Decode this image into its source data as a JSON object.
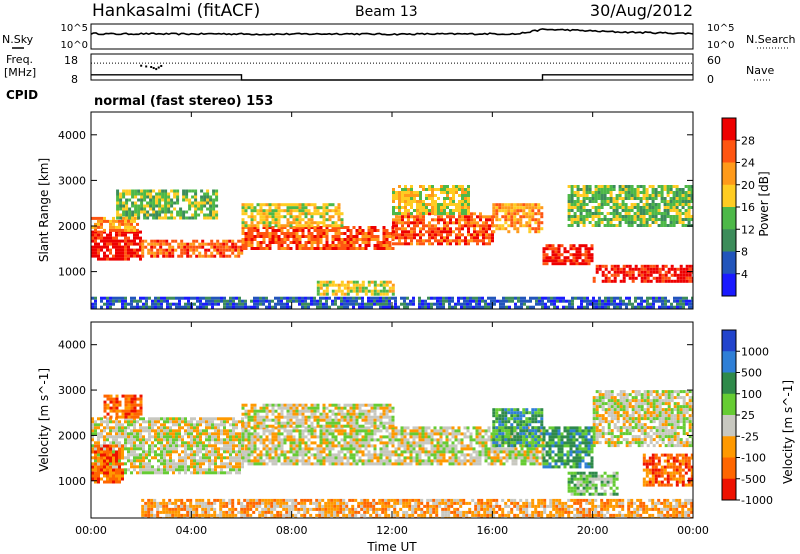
{
  "header": {
    "radar": "Hankasalmi (fitACF)",
    "beam": "Beam 13",
    "date": "30/Aug/2012"
  },
  "noise_panel": {
    "left_label": "N.Sky",
    "right_label": "N.Search",
    "tick_top": "10^5",
    "tick_bottom": "10^0"
  },
  "freq_panel": {
    "left_label": "Freq.",
    "left_unit": "[MHz]",
    "left_tick_top": "18",
    "left_tick_bottom": "8",
    "right_label": "Nave",
    "right_tick_top": "60",
    "right_tick_bottom": "0"
  },
  "cpid_panel": {
    "label": "CPID",
    "value": "normal (fast stereo) 153"
  },
  "x_axis": {
    "label": "Time UT",
    "ticks": [
      "00:00",
      "04:00",
      "08:00",
      "12:00",
      "16:00",
      "20:00",
      "00:00"
    ]
  },
  "power_panel": {
    "ylabel": "Slant Range [km]",
    "yticks": [
      "1000",
      "2000",
      "3000",
      "4000"
    ],
    "colorbar_label": "Power [dB]",
    "colorbar_ticks": [
      "4",
      "8",
      "12",
      "16",
      "20",
      "24",
      "28"
    ],
    "colors": [
      "#1a1aff",
      "#2255bb",
      "#3c8c5a",
      "#4db848",
      "#ffcc22",
      "#ff9a1a",
      "#ff5511",
      "#ee0000"
    ]
  },
  "velocity_panel": {
    "ylabel": "Velocity [m s^-1]",
    "yticks": [
      "1000",
      "2000",
      "3000",
      "4000"
    ],
    "colorbar_label": "Velocity [m s^-1]",
    "colorbar_ticks": [
      "1000",
      "500",
      "100",
      "25",
      "-25",
      "-100",
      "-500",
      "-1000"
    ],
    "colors": [
      "#2244cc",
      "#2f7fd6",
      "#2f8a4a",
      "#66cc33",
      "#c8c8c0",
      "#ff9900",
      "#ff6600",
      "#ee1100"
    ]
  },
  "chart_data": [
    {
      "type": "line",
      "name": "noise",
      "x_unit": "hours UT",
      "x": [
        0,
        1,
        2,
        3,
        4,
        5,
        6,
        7,
        8,
        9,
        10,
        11,
        12,
        13,
        14,
        15,
        16,
        17,
        18,
        19,
        20,
        21,
        22,
        23,
        24
      ],
      "y": [
        0.62,
        0.6,
        0.61,
        0.6,
        0.6,
        0.61,
        0.6,
        0.59,
        0.6,
        0.6,
        0.61,
        0.6,
        0.59,
        0.6,
        0.6,
        0.6,
        0.61,
        0.6,
        0.78,
        0.76,
        0.72,
        0.68,
        0.66,
        0.64,
        0.62
      ],
      "ylim": [
        0,
        1
      ]
    },
    {
      "type": "line",
      "name": "frequency",
      "x_unit": "hours UT",
      "x": [
        0,
        6,
        6,
        18,
        18,
        24
      ],
      "y": [
        10,
        10,
        8,
        8,
        10,
        10
      ],
      "ylim": [
        8,
        18
      ],
      "scatter_x": [
        2.0,
        2.2,
        2.4,
        2.5,
        2.6,
        2.7,
        2.8
      ],
      "scatter_y": [
        13.5,
        13.2,
        13.0,
        12.6,
        12.2,
        12.8,
        13.4
      ]
    },
    {
      "type": "line",
      "name": "nave",
      "x_unit": "hours UT",
      "x": [
        0,
        24
      ],
      "y": [
        39,
        39
      ],
      "ylim": [
        0,
        60
      ]
    },
    {
      "type": "heatmap",
      "name": "power",
      "x_range_hours": [
        0,
        24
      ],
      "ylim_km": [
        180,
        4500
      ],
      "color_levels_db": [
        0,
        4,
        8,
        12,
        16,
        20,
        24,
        28
      ],
      "bands": [
        {
          "t": [
            0,
            2
          ],
          "r": [
            1300,
            1900
          ],
          "level": 7
        },
        {
          "t": [
            0,
            1.8
          ],
          "r": [
            1900,
            2200
          ],
          "level": 5
        },
        {
          "t": [
            1,
            5
          ],
          "r": [
            2200,
            2800
          ],
          "level": 3
        },
        {
          "t": [
            2,
            6
          ],
          "r": [
            1350,
            1700
          ],
          "level": 6
        },
        {
          "t": [
            6,
            12
          ],
          "r": [
            1500,
            2000
          ],
          "level": 6
        },
        {
          "t": [
            6,
            10
          ],
          "r": [
            2000,
            2500
          ],
          "level": 4
        },
        {
          "t": [
            12,
            16
          ],
          "r": [
            1600,
            2300
          ],
          "level": 6
        },
        {
          "t": [
            12,
            15
          ],
          "r": [
            2300,
            2900
          ],
          "level": 4
        },
        {
          "t": [
            16,
            18
          ],
          "r": [
            1900,
            2500
          ],
          "level": 5
        },
        {
          "t": [
            18,
            20
          ],
          "r": [
            1200,
            1600
          ],
          "level": 7
        },
        {
          "t": [
            19,
            24
          ],
          "r": [
            2000,
            2900
          ],
          "level": 3
        },
        {
          "t": [
            20,
            24
          ],
          "r": [
            800,
            1150
          ],
          "level": 7
        },
        {
          "t": [
            9,
            12
          ],
          "r": [
            500,
            800
          ],
          "level": 4
        },
        {
          "t": [
            0,
            24
          ],
          "r": [
            200,
            450
          ],
          "level": 1
        }
      ]
    },
    {
      "type": "heatmap",
      "name": "velocity",
      "x_range_hours": [
        0,
        24
      ],
      "ylim_km": [
        180,
        4500
      ],
      "color_levels_ms": [
        1000,
        500,
        100,
        25,
        -25,
        -100,
        -500,
        -1000
      ],
      "bands": [
        {
          "t": [
            0,
            6
          ],
          "r": [
            1200,
            2400
          ],
          "level": 4
        },
        {
          "t": [
            0,
            1.2
          ],
          "r": [
            1000,
            1800
          ],
          "level": 6
        },
        {
          "t": [
            0.5,
            2
          ],
          "r": [
            2400,
            2900
          ],
          "level": 6
        },
        {
          "t": [
            6,
            18
          ],
          "r": [
            1400,
            2200
          ],
          "level": 4
        },
        {
          "t": [
            6,
            12
          ],
          "r": [
            2200,
            2700
          ],
          "level": 4
        },
        {
          "t": [
            16,
            18
          ],
          "r": [
            1800,
            2600
          ],
          "level": 2
        },
        {
          "t": [
            18,
            20
          ],
          "r": [
            1300,
            2200
          ],
          "level": 2
        },
        {
          "t": [
            19,
            21
          ],
          "r": [
            700,
            1200
          ],
          "level": 3
        },
        {
          "t": [
            22,
            24
          ],
          "r": [
            900,
            1600
          ],
          "level": 6
        },
        {
          "t": [
            20,
            24
          ],
          "r": [
            1800,
            3000
          ],
          "level": 4
        },
        {
          "t": [
            2,
            24
          ],
          "r": [
            200,
            600
          ],
          "level": 5
        }
      ]
    }
  ]
}
